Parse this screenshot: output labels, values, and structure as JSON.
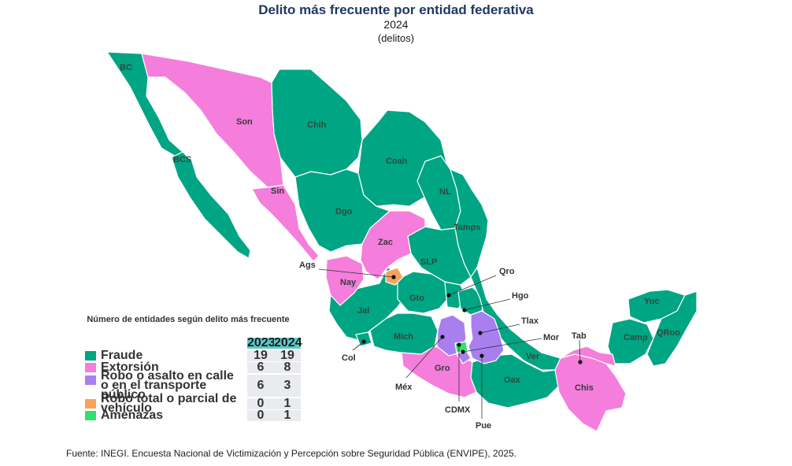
{
  "title": "Delito más frecuente por entidad federativa",
  "year": "2024",
  "unit": "(delitos)",
  "colors": {
    "fraude": "#00a583",
    "extorsion": "#f57ddb",
    "robo_asalto": "#a97ff0",
    "robo_vehiculo": "#f7a25c",
    "amenazas": "#33e06f"
  },
  "map_labels": [
    "BC",
    "Son",
    "Chih",
    "BCS",
    "Coah",
    "Sin",
    "Dgo",
    "NL",
    "Tamps",
    "Zac",
    "SLP",
    "Nay",
    "Gto",
    "Jal",
    "Mich",
    "Gro",
    "Oax",
    "Ver",
    "Chis",
    "Camp",
    "Yuc",
    "QRoo"
  ],
  "callouts": [
    "Ags",
    "Qro",
    "Hgo",
    "Tlax",
    "Mor",
    "Tab",
    "Col",
    "Méx",
    "CDMX",
    "Pue"
  ],
  "legend": {
    "title": "Número de entidades según delito más frecuente",
    "col_2023": "2023",
    "col_2024": "2024",
    "rows": [
      {
        "label": "Fraude",
        "v2023": "19",
        "v2024": "19"
      },
      {
        "label": "Extorsión",
        "v2023": "6",
        "v2024": "8"
      },
      {
        "label": "Robo o asalto en calle o en el transporte público",
        "v2023": "6",
        "v2024": "3"
      },
      {
        "label": "Robo total o parcial de vehículo",
        "v2023": "0",
        "v2024": "1"
      },
      {
        "label": "Amenazas",
        "v2023": "0",
        "v2024": "1"
      }
    ]
  },
  "source": "Fuente: INEGI. Encuesta Nacional de Victimización y Percepción sobre Seguridad Pública (ENVIPE), 2025."
}
